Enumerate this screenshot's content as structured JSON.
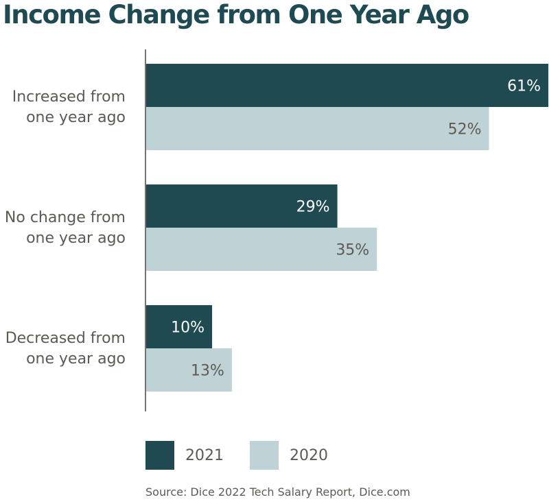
{
  "colors": {
    "series_2021": "#1f4a52",
    "series_2020": "#bfd2d6",
    "title": "#1f4a52",
    "text": "#5e5a52",
    "value_on_dark": "#ffffff",
    "value_on_light": "#5e5a52"
  },
  "chart_data": {
    "type": "bar",
    "orientation": "horizontal",
    "title": "Income Change from One Year Ago",
    "categories": [
      [
        "Increased from",
        "one year ago"
      ],
      [
        "No change from",
        "one year ago"
      ],
      [
        "Decreased from",
        "one year ago"
      ]
    ],
    "series": [
      {
        "name": "2021",
        "values": [
          61,
          29,
          10
        ],
        "labels": [
          "61%",
          "29%",
          "10%"
        ]
      },
      {
        "name": "2020",
        "values": [
          52,
          35,
          13
        ],
        "labels": [
          "52%",
          "35%",
          "13%"
        ]
      }
    ],
    "xlim": [
      0,
      61
    ],
    "unit": "%",
    "legend_position": "bottom",
    "grid": false,
    "source": "Source: Dice 2022 Tech Salary Report, Dice.com"
  }
}
